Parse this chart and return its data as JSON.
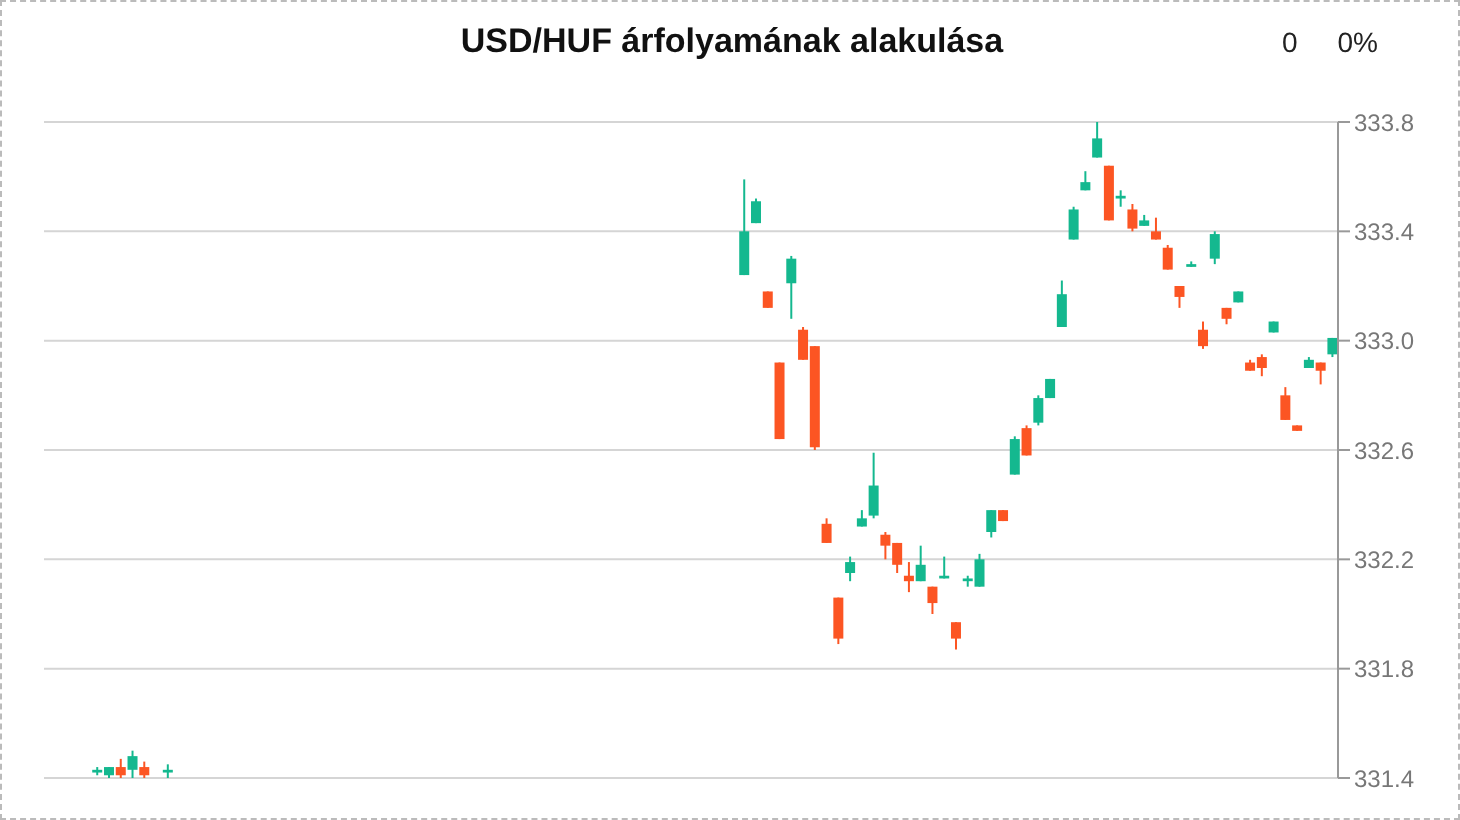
{
  "chart_data": {
    "type": "candlestick",
    "title": "USD/HUF árfolyamának alakulása",
    "annotations": [
      "0",
      "0%"
    ],
    "categories": [
      null,
      null,
      null,
      null,
      null,
      null,
      null,
      null,
      null,
      null,
      null,
      null,
      null,
      null,
      null,
      null,
      null,
      null,
      null,
      null,
      null,
      null,
      null,
      null,
      null,
      null,
      null,
      null,
      null,
      null,
      null,
      null,
      null,
      null,
      null,
      null,
      null,
      null,
      null,
      null,
      null,
      null,
      null,
      null,
      null,
      null,
      null,
      null,
      null,
      null,
      null,
      null,
      null,
      null,
      null,
      null,
      null,
      null,
      null,
      null,
      null,
      null,
      null,
      null,
      null,
      null,
      null,
      null,
      null,
      null,
      null,
      null,
      null,
      null,
      null,
      null,
      null,
      null,
      null,
      null,
      null,
      null,
      null,
      null,
      null,
      null,
      null,
      null,
      null,
      null,
      null,
      null,
      null,
      null,
      null,
      null,
      null,
      null,
      null,
      null,
      null,
      null,
      null,
      null,
      null,
      null,
      null,
      null,
      null,
      null
    ],
    "ohlc": [
      null,
      null,
      null,
      null,
      [
        331.42,
        331.44,
        331.41,
        331.43
      ],
      [
        331.41,
        331.44,
        331.4,
        331.44
      ],
      [
        331.44,
        331.47,
        331.4,
        331.41
      ],
      [
        331.43,
        331.5,
        331.4,
        331.48
      ],
      [
        331.44,
        331.46,
        331.4,
        331.41
      ],
      null,
      [
        331.42,
        331.45,
        331.4,
        331.43
      ],
      null,
      null,
      null,
      null,
      null,
      null,
      null,
      null,
      null,
      null,
      null,
      null,
      null,
      null,
      null,
      null,
      null,
      null,
      null,
      null,
      null,
      null,
      null,
      null,
      null,
      null,
      null,
      null,
      null,
      null,
      null,
      null,
      null,
      null,
      null,
      null,
      null,
      null,
      null,
      null,
      null,
      null,
      null,
      null,
      null,
      null,
      null,
      null,
      [
        333.24,
        333.59,
        333.24,
        333.4
      ],
      [
        333.43,
        333.52,
        333.43,
        333.51
      ],
      [
        333.18,
        333.18,
        333.12,
        333.12
      ],
      [
        332.92,
        332.92,
        332.64,
        332.64
      ],
      [
        333.21,
        333.31,
        333.08,
        333.3
      ],
      [
        333.04,
        333.05,
        332.93,
        332.93
      ],
      [
        332.98,
        332.98,
        332.6,
        332.61
      ],
      [
        332.33,
        332.35,
        332.26,
        332.26
      ],
      [
        332.06,
        332.06,
        331.89,
        331.91
      ],
      [
        332.15,
        332.21,
        332.12,
        332.19
      ],
      [
        332.32,
        332.38,
        332.32,
        332.35
      ],
      [
        332.36,
        332.59,
        332.35,
        332.47
      ],
      [
        332.29,
        332.3,
        332.2,
        332.25
      ],
      [
        332.26,
        332.26,
        332.15,
        332.18
      ],
      [
        332.14,
        332.19,
        332.08,
        332.12
      ],
      [
        332.12,
        332.25,
        332.12,
        332.18
      ],
      [
        332.1,
        332.1,
        332.0,
        332.04
      ],
      [
        332.13,
        332.21,
        332.13,
        332.14
      ],
      [
        331.97,
        331.97,
        331.87,
        331.91
      ],
      [
        332.12,
        332.14,
        332.1,
        332.13
      ],
      [
        332.1,
        332.22,
        332.1,
        332.2
      ],
      [
        332.3,
        332.38,
        332.28,
        332.38
      ],
      [
        332.38,
        332.38,
        332.34,
        332.34
      ],
      [
        332.51,
        332.65,
        332.51,
        332.64
      ],
      [
        332.68,
        332.69,
        332.58,
        332.58
      ],
      [
        332.7,
        332.8,
        332.69,
        332.79
      ],
      [
        332.79,
        332.86,
        332.79,
        332.86
      ],
      [
        333.05,
        333.22,
        333.05,
        333.17
      ],
      [
        333.37,
        333.49,
        333.37,
        333.48
      ],
      [
        333.55,
        333.62,
        333.55,
        333.58
      ],
      [
        333.67,
        333.8,
        333.67,
        333.74
      ],
      [
        333.64,
        333.64,
        333.44,
        333.44
      ],
      [
        333.52,
        333.55,
        333.49,
        333.53
      ],
      [
        333.48,
        333.5,
        333.4,
        333.41
      ],
      [
        333.42,
        333.46,
        333.42,
        333.44
      ],
      [
        333.4,
        333.45,
        333.37,
        333.37
      ],
      [
        333.34,
        333.35,
        333.26,
        333.26
      ],
      [
        333.2,
        333.2,
        333.12,
        333.16
      ],
      [
        333.27,
        333.29,
        333.27,
        333.28
      ],
      [
        333.04,
        333.07,
        332.97,
        332.98
      ],
      [
        333.3,
        333.4,
        333.28,
        333.39
      ],
      [
        333.12,
        333.12,
        333.06,
        333.08
      ],
      [
        333.14,
        333.18,
        333.14,
        333.18
      ],
      [
        332.92,
        332.93,
        332.89,
        332.89
      ],
      [
        332.94,
        332.95,
        332.87,
        332.9
      ],
      [
        333.03,
        333.07,
        333.03,
        333.07
      ],
      [
        332.8,
        332.83,
        332.71,
        332.71
      ],
      [
        332.69,
        332.69,
        332.67,
        332.67
      ],
      [
        332.9,
        332.94,
        332.9,
        332.93
      ],
      [
        332.92,
        332.92,
        332.84,
        332.89
      ],
      [
        332.95,
        333.01,
        332.94,
        333.01
      ]
    ],
    "colors": [
      null,
      null,
      null,
      null,
      "#14b88f",
      "#14b88f",
      "#fc5523",
      "#14b88f",
      "#fc5523",
      null,
      "#14b88f",
      null,
      null,
      null,
      null,
      null,
      null,
      null,
      null,
      null,
      null,
      null,
      null,
      null,
      null,
      null,
      null,
      null,
      null,
      null,
      null,
      null,
      null,
      null,
      null,
      null,
      null,
      null,
      null,
      null,
      null,
      null,
      null,
      null,
      null,
      null,
      null,
      null,
      null,
      null,
      null,
      null,
      null,
      null,
      null,
      null,
      null,
      null,
      null,
      "#14b88f",
      "#14b88f",
      "#fc5523",
      "#fc5523",
      "#14b88f",
      "#fc5523",
      "#fc5523",
      "#fc5523",
      "#fc5523",
      "#14b88f",
      "#14b88f",
      "#14b88f",
      "#fc5523",
      "#fc5523",
      "#fc5523",
      "#14b88f",
      "#fc5523",
      "#14b88f",
      "#fc5523",
      "#14b88f",
      "#14b88f",
      "#14b88f",
      "#fc5523",
      "#14b88f",
      "#fc5523",
      "#14b88f",
      "#14b88f",
      "#14b88f",
      "#14b88f",
      "#14b88f",
      "#14b88f",
      "#fc5523",
      "#14b88f",
      "#fc5523",
      "#14b88f",
      "#fc5523",
      "#fc5523",
      "#fc5523",
      "#14b88f",
      "#fc5523",
      "#14b88f",
      "#fc5523",
      "#14b88f",
      "#fc5523",
      "#fc5523",
      "#14b88f",
      "#fc5523",
      "#fc5523",
      "#14b88f",
      "#fc5523",
      "#14b88f"
    ],
    "ylim": [
      331.4,
      333.8
    ],
    "yticks": [
      {
        "value": 331.4,
        "label": "331.4"
      },
      {
        "value": 331.8,
        "label": "331.8"
      },
      {
        "value": 332.2,
        "label": "332.2"
      },
      {
        "value": 332.6,
        "label": "332.6"
      },
      {
        "value": 333.0,
        "label": "333.0"
      },
      {
        "value": 333.4,
        "label": "333.4"
      },
      {
        "value": 333.8,
        "label": "333.8"
      }
    ],
    "grid": "y",
    "tick_labels": "y"
  }
}
